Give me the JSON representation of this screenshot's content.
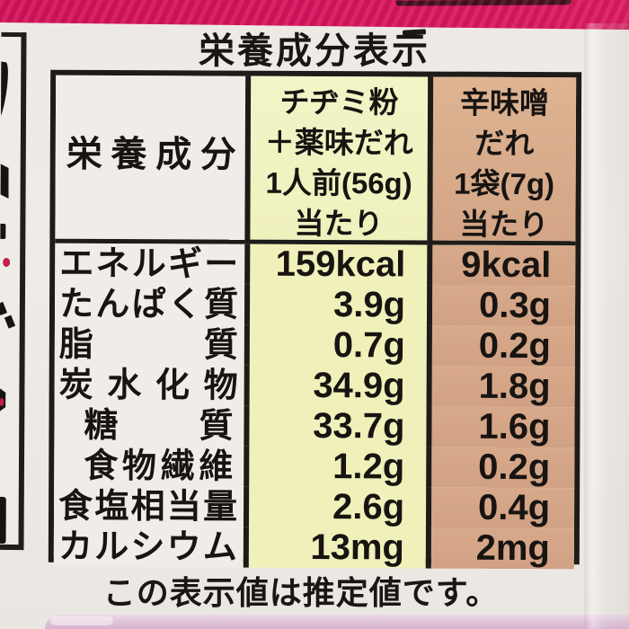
{
  "title": "栄養成分表示",
  "table": {
    "header": {
      "col1": "栄養成分",
      "col2_lines": [
        "チヂミ粉",
        "＋薬味だれ",
        "1人前(56g)",
        "当たり"
      ],
      "col3_lines": [
        "辛味噌",
        "だれ",
        "1袋(7g)",
        "当たり"
      ]
    },
    "rows": [
      {
        "label": "エネルギー",
        "indent": false,
        "v1": "159kcal",
        "v2": "9kcal"
      },
      {
        "label": "たんぱく質",
        "indent": false,
        "v1": "3.9g",
        "v2": "0.3g"
      },
      {
        "label": "脂質",
        "indent": false,
        "v1": "0.7g",
        "v2": "0.2g"
      },
      {
        "label": "炭水化物",
        "indent": false,
        "v1": "34.9g",
        "v2": "1.8g"
      },
      {
        "label": "糖質",
        "indent": true,
        "v1": "33.7g",
        "v2": "1.6g"
      },
      {
        "label": "食物繊維",
        "indent": true,
        "v1": "1.2g",
        "v2": "0.2g"
      },
      {
        "label": "食塩相当量",
        "indent": false,
        "v1": "2.6g",
        "v2": "0.4g"
      },
      {
        "label": "カルシウム",
        "indent": false,
        "v1": "13mg",
        "v2": "2mg"
      }
    ]
  },
  "footer": "この表示値は推定値です。",
  "colors": {
    "band_pink": "#d6135c",
    "band_dark_mark": "#47101f",
    "column_yellow": "#f0f0ba",
    "column_yellow_header": "#f2f3c5",
    "column_tan": "#d3a487",
    "column_tan_header": "#dcb290",
    "label_paper": "#f0ede8",
    "table_border": "#1e1c19",
    "bottom_shape_pink": "#dfc2d8",
    "red_speck": "#c22046"
  }
}
